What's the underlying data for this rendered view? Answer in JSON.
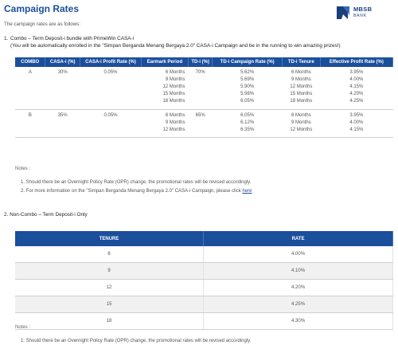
{
  "header": {
    "title": "Campaign Rates",
    "logo_name": "MBSB",
    "logo_sub": "BANK"
  },
  "intro": "The campaign rates are as follows:",
  "section1": {
    "number": "1.",
    "heading": "Combo – Term Deposit-i bundle with PrimeWin CASA-i",
    "subheading": "(You will be automatically enrolled in the \"Simpan Berganda Menang Bergaya 2.0\" CASA-i Campaign and be in the running to win amazing prizes!)",
    "columns": [
      "COMBO",
      "CASA-i (%)",
      "CASA-i Profit Rate (%)",
      "Earmark Period",
      "TD-i (%)",
      "TD-i Campaign Rate (%)",
      "TD-i Tenure",
      "Effective Profit Rate (%)"
    ],
    "rows": [
      {
        "combo": "A",
        "casa": "30%",
        "casa_rate": "0.05%",
        "earmark": [
          "6 Months",
          "9 Months",
          "12 Months",
          "15 Months",
          "18 Months"
        ],
        "td": "70%",
        "td_rate": [
          "5.62%",
          "5.69%",
          "5.90%",
          "5.98%",
          "6.05%"
        ],
        "tenure": [
          "6 Months",
          "9 Months",
          "12 Months",
          "15 Months",
          "18 Months"
        ],
        "effective": [
          "3.95%",
          "4.00%",
          "4.15%",
          "4.20%",
          "4.25%"
        ]
      },
      {
        "combo": "B",
        "casa": "35%",
        "casa_rate": "0.05%",
        "earmark": [
          "6 Months",
          "9 Months",
          "12 Months"
        ],
        "td": "65%",
        "td_rate": [
          "6.05%",
          "6.12%",
          "6.35%"
        ],
        "tenure": [
          "6 Months",
          "9 Months",
          "12 Months"
        ],
        "effective": [
          "3.95%",
          "4.00%",
          "4.15%"
        ]
      }
    ],
    "notes_label": "Notes :",
    "notes": [
      "1. Should there be an Overnight Policy Rate (OPR) change, the promotional rates will be revised accordingly.",
      "2. For more information on the \"Simpan Berganda Menang Bergaya 2.0\" CASA-i Campaign, please click "
    ],
    "link_text": "here"
  },
  "section2": {
    "heading": "2. Non-Combo – Term Deposit-i Only",
    "columns": [
      "TENURE",
      "RATE"
    ],
    "rows": [
      {
        "tenure": "6",
        "rate": "4.00%"
      },
      {
        "tenure": "9",
        "rate": "4.10%"
      },
      {
        "tenure": "12",
        "rate": "4.20%"
      },
      {
        "tenure": "15",
        "rate": "4.25%"
      },
      {
        "tenure": "18",
        "rate": "4.30%"
      }
    ],
    "notes_label": "Notes :",
    "notes": [
      "1. Should there be an Overnight Policy Rate (OPR) change, the promotional rates will be revised accordingly."
    ]
  }
}
